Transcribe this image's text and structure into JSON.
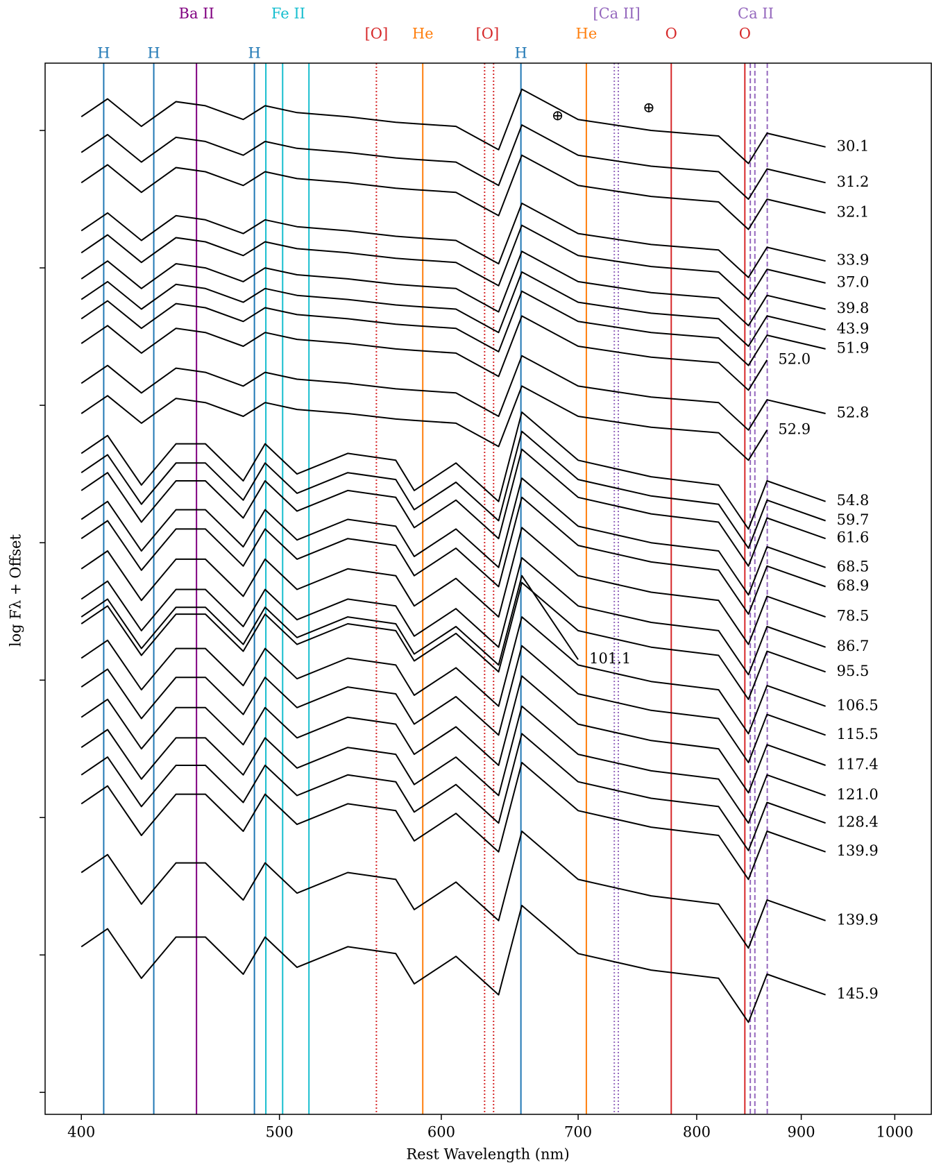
{
  "chart_data": {
    "type": "line",
    "x_label": "Rest Wavelength (nm)",
    "y_label": "log Fλ + Offset",
    "xscale": "log",
    "xlim": [
      384,
      1042
    ],
    "ylim": [
      -0.16,
      7.49
    ],
    "xticks": [
      400,
      500,
      600,
      700,
      800,
      900,
      1000
    ],
    "yticks": [
      0,
      1,
      2,
      3,
      4,
      5,
      6,
      7
    ],
    "x": [
      400,
      412,
      428,
      445,
      460,
      480,
      492,
      510,
      540,
      570,
      582,
      610,
      640,
      657,
      700,
      760,
      820,
      848,
      866,
      925
    ],
    "series": [
      {
        "name": "30.1",
        "color": "#000000",
        "values": [
          7.1,
          7.23,
          7.03,
          7.21,
          7.18,
          7.08,
          7.18,
          7.13,
          7.1,
          7.06,
          7.05,
          7.03,
          6.86,
          7.3,
          7.08,
          7.0,
          6.96,
          6.76,
          6.98,
          6.88
        ]
      },
      {
        "name": "31.2",
        "color": "#000000",
        "values": [
          6.84,
          6.97,
          6.77,
          6.95,
          6.92,
          6.82,
          6.92,
          6.87,
          6.84,
          6.8,
          6.79,
          6.77,
          6.6,
          7.04,
          6.82,
          6.74,
          6.7,
          6.5,
          6.72,
          6.62
        ]
      },
      {
        "name": "32.1",
        "color": "#000000",
        "values": [
          6.62,
          6.75,
          6.55,
          6.73,
          6.7,
          6.6,
          6.7,
          6.65,
          6.62,
          6.58,
          6.57,
          6.55,
          6.38,
          6.82,
          6.6,
          6.52,
          6.48,
          6.28,
          6.5,
          6.4
        ]
      },
      {
        "name": "33.9",
        "color": "#000000",
        "values": [
          6.27,
          6.4,
          6.2,
          6.38,
          6.35,
          6.25,
          6.35,
          6.3,
          6.27,
          6.23,
          6.22,
          6.2,
          6.03,
          6.47,
          6.25,
          6.17,
          6.13,
          5.93,
          6.15,
          6.05
        ]
      },
      {
        "name": "37.0",
        "color": "#000000",
        "values": [
          6.11,
          6.24,
          6.04,
          6.22,
          6.19,
          6.09,
          6.19,
          6.14,
          6.11,
          6.07,
          6.06,
          6.04,
          5.87,
          6.31,
          6.09,
          6.01,
          5.97,
          5.77,
          5.99,
          5.89
        ]
      },
      {
        "name": "39.8",
        "color": "#000000",
        "values": [
          5.92,
          6.05,
          5.85,
          6.03,
          6.0,
          5.9,
          6.0,
          5.95,
          5.92,
          5.88,
          5.87,
          5.85,
          5.68,
          6.12,
          5.9,
          5.82,
          5.78,
          5.58,
          5.8,
          5.7
        ]
      },
      {
        "name": "43.9",
        "color": "#000000",
        "values": [
          5.77,
          5.9,
          5.7,
          5.88,
          5.85,
          5.75,
          5.85,
          5.8,
          5.77,
          5.73,
          5.72,
          5.7,
          5.53,
          5.97,
          5.75,
          5.67,
          5.63,
          5.43,
          5.65,
          5.55
        ]
      },
      {
        "name": "51.9",
        "color": "#000000",
        "values": [
          5.63,
          5.76,
          5.56,
          5.74,
          5.71,
          5.61,
          5.71,
          5.66,
          5.63,
          5.59,
          5.58,
          5.56,
          5.39,
          5.83,
          5.61,
          5.53,
          5.49,
          5.29,
          5.51,
          5.41
        ]
      },
      {
        "name": "52.0",
        "color": "#000000",
        "values": [
          5.45,
          5.58,
          5.38,
          5.56,
          5.53,
          5.43,
          5.53,
          5.48,
          5.45,
          5.41,
          5.4,
          5.38,
          5.21,
          5.65,
          5.43,
          5.35,
          5.31,
          5.11,
          5.33,
          null
        ]
      },
      {
        "name": "52.8",
        "color": "#000000",
        "values": [
          5.16,
          5.29,
          5.09,
          5.27,
          5.24,
          5.14,
          5.24,
          5.19,
          5.16,
          5.12,
          5.11,
          5.09,
          4.92,
          5.36,
          5.14,
          5.06,
          5.02,
          4.82,
          5.04,
          4.94
        ]
      },
      {
        "name": "52.9",
        "color": "#000000",
        "values": [
          4.94,
          5.07,
          4.87,
          5.05,
          5.02,
          4.92,
          5.02,
          4.97,
          4.94,
          4.9,
          4.89,
          4.87,
          4.7,
          5.14,
          4.92,
          4.84,
          4.8,
          4.6,
          4.82,
          null
        ]
      },
      {
        "name": "54.8",
        "color": "#000000",
        "values": [
          4.65,
          4.78,
          4.42,
          4.72,
          4.72,
          4.45,
          4.72,
          4.5,
          4.65,
          4.6,
          4.38,
          4.58,
          4.3,
          4.95,
          4.6,
          4.48,
          4.42,
          4.1,
          4.45,
          4.3
        ]
      },
      {
        "name": "59.7",
        "color": "#000000",
        "values": [
          4.51,
          4.64,
          4.28,
          4.58,
          4.58,
          4.31,
          4.58,
          4.36,
          4.51,
          4.46,
          4.24,
          4.44,
          4.16,
          4.81,
          4.46,
          4.34,
          4.28,
          3.96,
          4.31,
          4.16
        ]
      },
      {
        "name": "61.6",
        "color": "#000000",
        "values": [
          4.38,
          4.51,
          4.15,
          4.45,
          4.45,
          4.18,
          4.45,
          4.23,
          4.38,
          4.33,
          4.11,
          4.31,
          4.03,
          4.68,
          4.33,
          4.21,
          4.15,
          3.83,
          4.18,
          4.03
        ]
      },
      {
        "name": "68.5",
        "color": "#000000",
        "values": [
          4.17,
          4.3,
          3.94,
          4.24,
          4.24,
          3.97,
          4.24,
          4.02,
          4.17,
          4.12,
          3.9,
          4.1,
          3.82,
          4.47,
          4.12,
          4.0,
          3.94,
          3.62,
          3.97,
          3.82
        ]
      },
      {
        "name": "68.9",
        "color": "#000000",
        "values": [
          4.03,
          4.16,
          3.8,
          4.1,
          4.1,
          3.83,
          4.1,
          3.88,
          4.03,
          3.98,
          3.76,
          3.96,
          3.68,
          4.33,
          3.98,
          3.86,
          3.8,
          3.48,
          3.83,
          3.68
        ]
      },
      {
        "name": "78.5",
        "color": "#000000",
        "values": [
          3.81,
          3.94,
          3.58,
          3.88,
          3.88,
          3.61,
          3.88,
          3.66,
          3.81,
          3.76,
          3.54,
          3.74,
          3.46,
          4.11,
          3.76,
          3.64,
          3.58,
          3.26,
          3.61,
          3.46
        ]
      },
      {
        "name": "86.7",
        "color": "#000000",
        "values": [
          3.59,
          3.72,
          3.36,
          3.66,
          3.66,
          3.39,
          3.66,
          3.44,
          3.59,
          3.54,
          3.32,
          3.52,
          3.24,
          3.89,
          3.54,
          3.42,
          3.36,
          3.04,
          3.39,
          3.24
        ]
      },
      {
        "name": "101.1",
        "color": "#000000",
        "values": [
          3.46,
          3.59,
          3.23,
          3.53,
          3.53,
          3.26,
          3.53,
          3.31,
          3.46,
          3.41,
          3.19,
          3.39,
          3.11,
          3.76,
          3.15,
          null,
          null,
          null,
          null,
          null
        ]
      },
      {
        "name": "95.5",
        "color": "#000000",
        "values": [
          3.41,
          3.54,
          3.18,
          3.48,
          3.48,
          3.21,
          3.48,
          3.26,
          3.41,
          3.36,
          3.14,
          3.34,
          3.06,
          3.71,
          3.36,
          3.24,
          3.18,
          2.86,
          3.21,
          3.06
        ]
      },
      {
        "name": "106.5",
        "color": "#000000",
        "values": [
          3.16,
          3.29,
          2.93,
          3.23,
          3.23,
          2.96,
          3.23,
          3.01,
          3.16,
          3.11,
          2.89,
          3.09,
          2.81,
          3.46,
          3.11,
          2.99,
          2.93,
          2.61,
          2.96,
          2.81
        ]
      },
      {
        "name": "115.5",
        "color": "#000000",
        "values": [
          2.95,
          3.08,
          2.72,
          3.02,
          3.02,
          2.75,
          3.02,
          2.8,
          2.95,
          2.9,
          2.68,
          2.88,
          2.6,
          3.25,
          2.9,
          2.78,
          2.72,
          2.4,
          2.75,
          2.6
        ]
      },
      {
        "name": "117.4",
        "color": "#000000",
        "values": [
          2.73,
          2.86,
          2.5,
          2.8,
          2.8,
          2.53,
          2.8,
          2.58,
          2.73,
          2.68,
          2.46,
          2.66,
          2.38,
          3.03,
          2.68,
          2.56,
          2.5,
          2.18,
          2.53,
          2.38
        ]
      },
      {
        "name": "121.0",
        "color": "#000000",
        "values": [
          2.51,
          2.64,
          2.28,
          2.58,
          2.58,
          2.31,
          2.58,
          2.36,
          2.51,
          2.46,
          2.24,
          2.44,
          2.16,
          2.81,
          2.46,
          2.34,
          2.28,
          1.96,
          2.31,
          2.16
        ]
      },
      {
        "name": "128.4",
        "color": "#000000",
        "values": [
          2.31,
          2.44,
          2.08,
          2.38,
          2.38,
          2.11,
          2.38,
          2.16,
          2.31,
          2.26,
          2.04,
          2.24,
          1.96,
          2.61,
          2.26,
          2.14,
          2.08,
          1.76,
          2.11,
          1.96
        ]
      },
      {
        "name": "139.9",
        "color": "#000000",
        "values": [
          2.1,
          2.23,
          1.87,
          2.17,
          2.17,
          1.9,
          2.17,
          1.95,
          2.1,
          2.05,
          1.83,
          2.03,
          1.75,
          2.4,
          2.05,
          1.93,
          1.87,
          1.55,
          1.9,
          1.75
        ]
      },
      {
        "name": "139.9",
        "color": "#000000",
        "values": [
          1.6,
          1.73,
          1.37,
          1.67,
          1.67,
          1.4,
          1.67,
          1.45,
          1.6,
          1.55,
          1.33,
          1.53,
          1.25,
          1.9,
          1.55,
          1.43,
          1.37,
          1.05,
          1.4,
          1.25
        ]
      },
      {
        "name": "145.9",
        "color": "#000000",
        "values": [
          1.06,
          1.19,
          0.83,
          1.13,
          1.13,
          0.86,
          1.13,
          0.91,
          1.06,
          1.01,
          0.79,
          0.99,
          0.71,
          1.36,
          1.01,
          0.89,
          0.83,
          0.51,
          0.86,
          0.71
        ]
      }
    ],
    "line_ids": [
      [
        {
          "name": "Ba II",
          "color": "#800080",
          "dash": "solid",
          "lines": [
            455.4
          ],
          "labels_at": [
            455.4
          ]
        },
        {
          "name": "Fe II",
          "color": "#17becf",
          "dash": "solid",
          "lines": [
            492.4,
            501.8,
            516.9
          ],
          "labels_at": [
            505
          ]
        },
        {
          "name": "[Ca II]",
          "color": "#9467bd",
          "dash": "dotted",
          "lines": [
            729.1,
            732.4
          ],
          "labels_at": [
            731
          ]
        },
        {
          "name": "Ca II",
          "color": "#9467bd",
          "dash": "dashed",
          "lines": [
            849.8,
            854.2,
            866.2
          ],
          "labels_at": [
            855
          ]
        }
      ],
      [
        {
          "name": "[O]",
          "color": "#d62728",
          "dash": "dotted",
          "lines": [
            557.7
          ],
          "labels_at": [
            557.7
          ]
        },
        {
          "name": "He",
          "color": "#ff7f0e",
          "dash": "solid",
          "lines": [
            587.6
          ],
          "labels_at": [
            587.6
          ]
        },
        {
          "name": "[O]",
          "color": "#d62728",
          "dash": "dotted",
          "lines": [
            630.0,
            636.4
          ],
          "labels_at": [
            632
          ]
        },
        {
          "name": "He",
          "color": "#ff7f0e",
          "dash": "solid",
          "lines": [
            706.5
          ],
          "labels_at": [
            706.5
          ]
        },
        {
          "name": "O",
          "color": "#d62728",
          "dash": "solid",
          "lines": [
            777.4
          ],
          "labels_at": [
            777.4
          ]
        },
        {
          "name": "O",
          "color": "#d62728",
          "dash": "solid",
          "lines": [
            844.6
          ],
          "labels_at": [
            844.6
          ]
        }
      ],
      [
        {
          "name": "H",
          "color": "#1f77b4",
          "dash": "solid",
          "lines": [
            410.2,
            434.0,
            486.1,
            656.3
          ],
          "labels_at": [
            410.2,
            434.0,
            486.1,
            656.3
          ]
        }
      ]
    ],
    "annotations": [
      {
        "text": "⊕",
        "x": 684,
        "y": 7.1
      },
      {
        "text": "⊕",
        "x": 758,
        "y": 7.16
      }
    ]
  }
}
